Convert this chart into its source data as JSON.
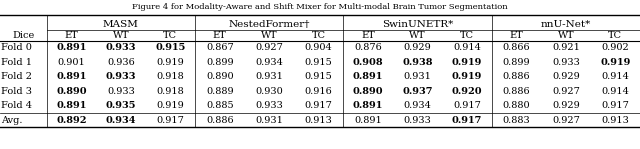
{
  "methods": [
    "MASM",
    "NestedFormer†",
    "SwinUNETR*",
    "nnU-Net*"
  ],
  "subheaders": [
    "ET",
    "WT",
    "TC"
  ],
  "data": {
    "MASM": {
      "ET": [
        "0.891",
        "0.901",
        "0.891",
        "0.890",
        "0.891",
        "0.892"
      ],
      "WT": [
        "0.933",
        "0.936",
        "0.933",
        "0.933",
        "0.935",
        "0.934"
      ],
      "TC": [
        "0.915",
        "0.919",
        "0.918",
        "0.918",
        "0.919",
        "0.917"
      ]
    },
    "NestedFormer†": {
      "ET": [
        "0.867",
        "0.899",
        "0.890",
        "0.889",
        "0.885",
        "0.886"
      ],
      "WT": [
        "0.927",
        "0.934",
        "0.931",
        "0.930",
        "0.933",
        "0.931"
      ],
      "TC": [
        "0.904",
        "0.915",
        "0.915",
        "0.916",
        "0.917",
        "0.913"
      ]
    },
    "SwinUNETR*": {
      "ET": [
        "0.876",
        "0.908",
        "0.891",
        "0.890",
        "0.891",
        "0.891"
      ],
      "WT": [
        "0.929",
        "0.938",
        "0.931",
        "0.937",
        "0.934",
        "0.933"
      ],
      "TC": [
        "0.914",
        "0.919",
        "0.919",
        "0.920",
        "0.917",
        "0.917"
      ]
    },
    "nnU-Net*": {
      "ET": [
        "0.866",
        "0.899",
        "0.886",
        "0.886",
        "0.880",
        "0.883"
      ],
      "WT": [
        "0.921",
        "0.933",
        "0.929",
        "0.927",
        "0.929",
        "0.927"
      ],
      "TC": [
        "0.902",
        "0.919",
        "0.914",
        "0.914",
        "0.917",
        "0.913"
      ]
    }
  },
  "bold": {
    "MASM": {
      "ET": [
        true,
        false,
        true,
        true,
        true,
        true
      ],
      "WT": [
        true,
        false,
        true,
        false,
        true,
        true
      ],
      "TC": [
        true,
        false,
        false,
        false,
        false,
        false
      ]
    },
    "NestedFormer†": {
      "ET": [
        false,
        false,
        false,
        false,
        false,
        false
      ],
      "WT": [
        false,
        false,
        false,
        false,
        false,
        false
      ],
      "TC": [
        false,
        false,
        false,
        false,
        false,
        false
      ]
    },
    "SwinUNETR*": {
      "ET": [
        false,
        true,
        true,
        true,
        true,
        false
      ],
      "WT": [
        false,
        true,
        false,
        true,
        false,
        false
      ],
      "TC": [
        false,
        true,
        true,
        true,
        false,
        true
      ]
    },
    "nnU-Net*": {
      "ET": [
        false,
        false,
        false,
        false,
        false,
        false
      ],
      "WT": [
        false,
        false,
        false,
        false,
        false,
        false
      ],
      "TC": [
        false,
        true,
        false,
        false,
        false,
        false
      ]
    }
  },
  "fold_labels": [
    "Fold 0",
    "Fold 1",
    "Fold 2",
    "Fold 3",
    "Fold 4",
    "Avg."
  ],
  "font_size": 7.0,
  "background_color": "#ffffff",
  "top_caption": "Figure 4 for Modality-Aware and Shift Mixer for Multi-modal Brain Tumor Segmentation"
}
